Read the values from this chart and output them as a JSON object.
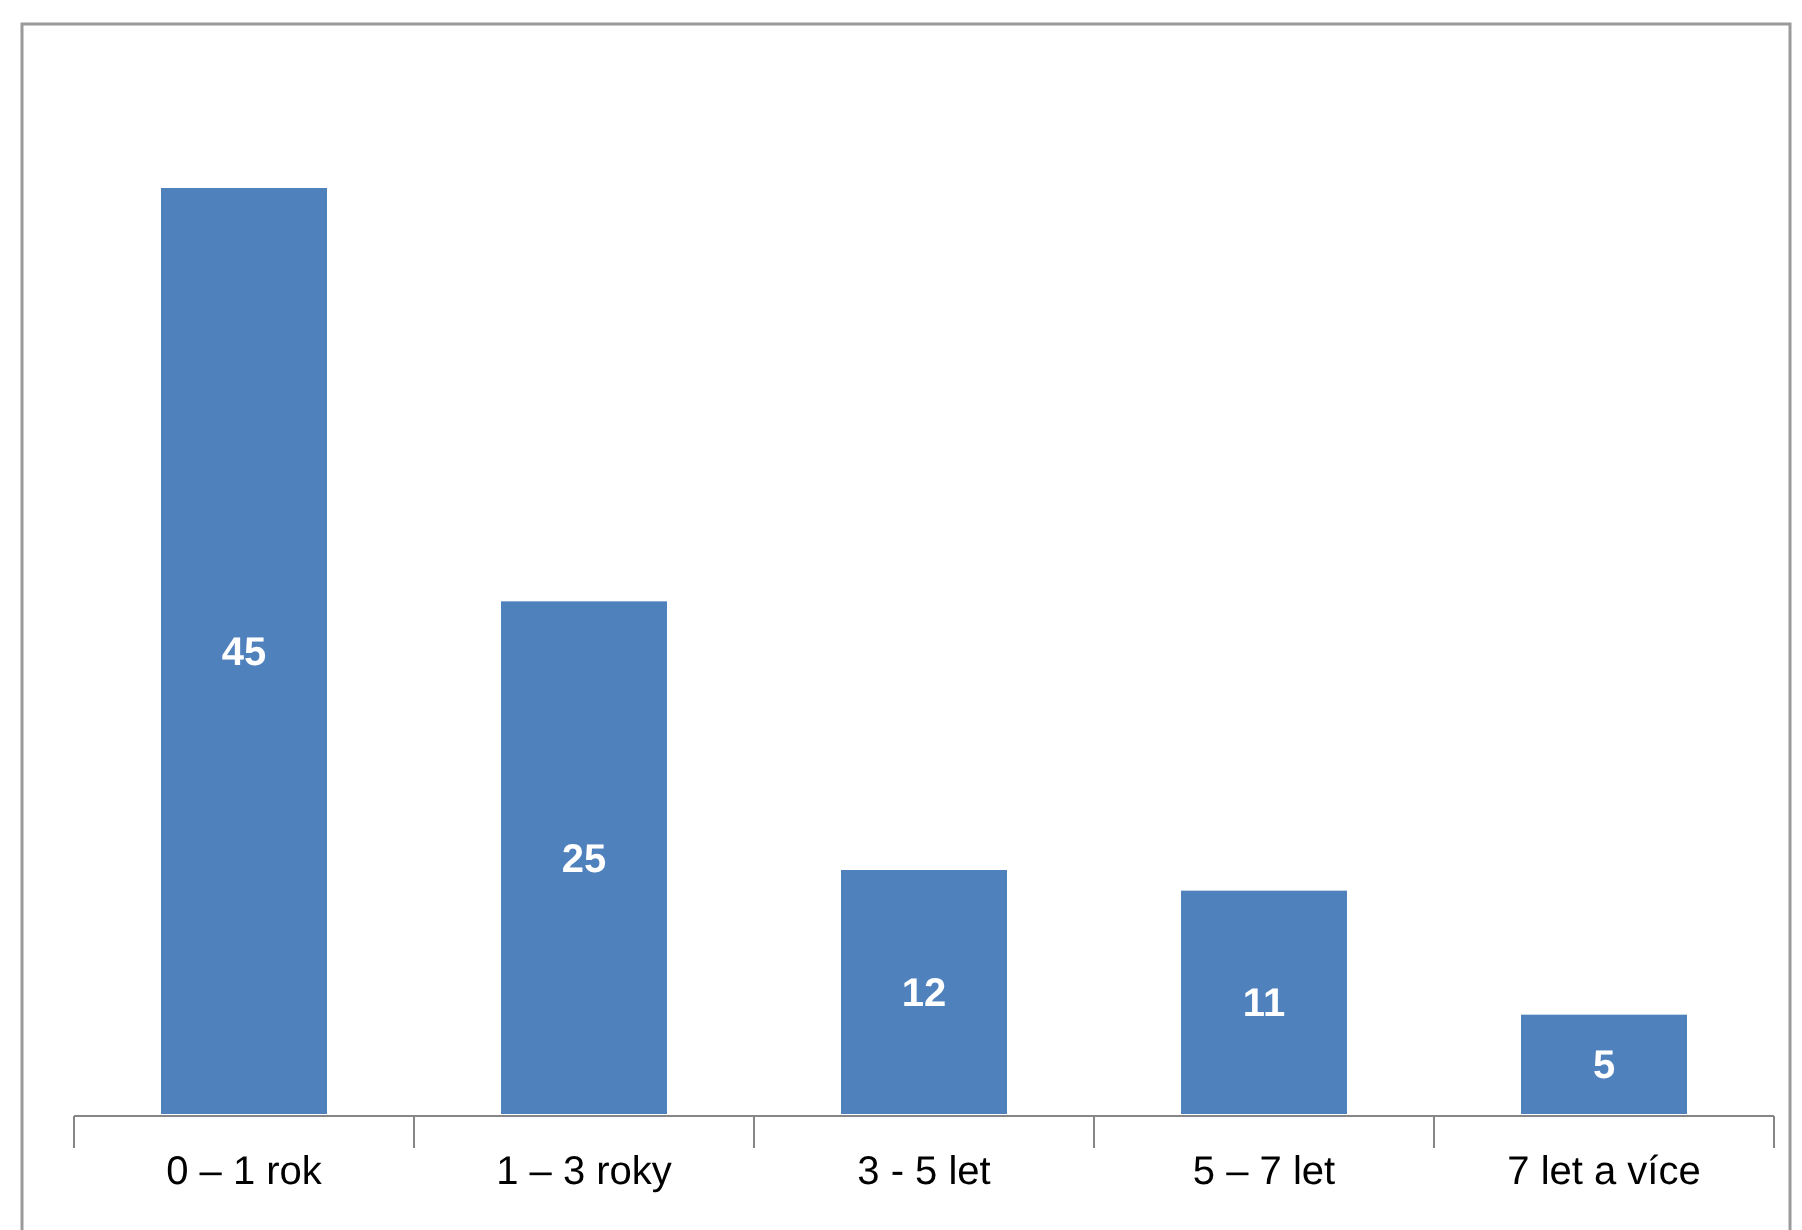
{
  "chart_data": {
    "type": "bar",
    "categories": [
      "0 – 1 rok",
      "1 – 3 roky",
      "3 - 5 let",
      "5 – 7 let",
      "7 let a více"
    ],
    "values": [
      45,
      25,
      12,
      11,
      5
    ],
    "color": "#4f81bd",
    "data_labels": true
  }
}
